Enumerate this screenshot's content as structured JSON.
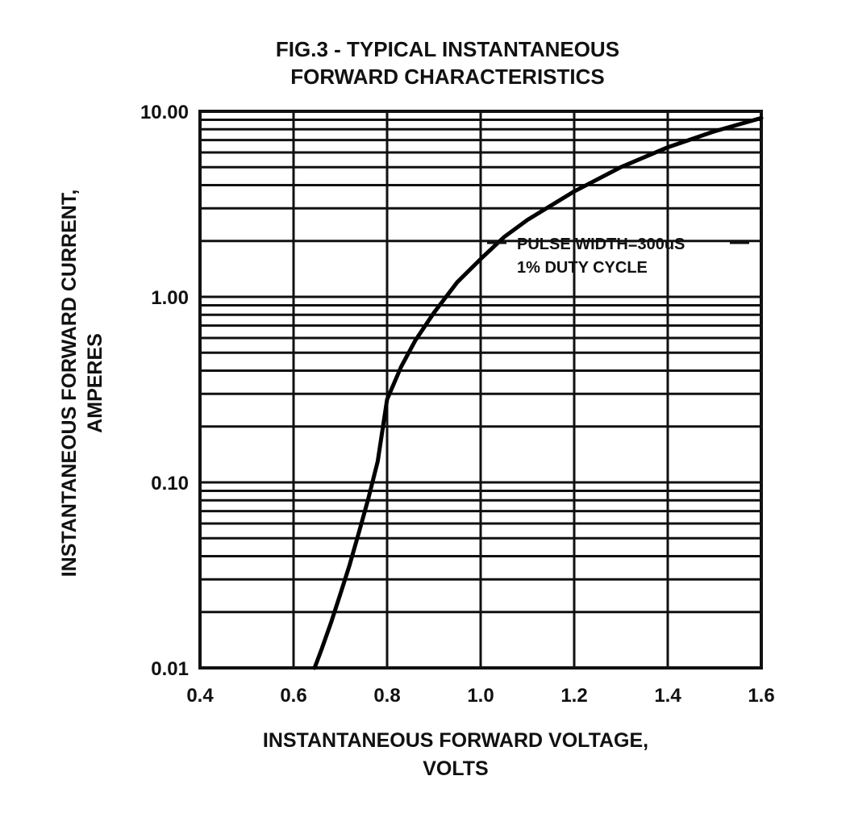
{
  "chart_data": {
    "type": "line",
    "title_lines": [
      "FIG.3 - TYPICAL INSTANTANEOUS",
      "FORWARD CHARACTERISTICS"
    ],
    "xlabel_lines": [
      "INSTANTANEOUS FORWARD VOLTAGE,",
      "VOLTS"
    ],
    "ylabel_lines": [
      "INSTANTANEOUS FORWARD CURRENT,",
      "AMPERES"
    ],
    "xlim": [
      0.4,
      1.6
    ],
    "ylim": [
      0.01,
      10
    ],
    "y_scale": "log",
    "x_ticks": [
      {
        "value": 0.4,
        "label": "0.4"
      },
      {
        "value": 0.6,
        "label": "0.6"
      },
      {
        "value": 0.8,
        "label": "0.8"
      },
      {
        "value": 1.0,
        "label": "1.0"
      },
      {
        "value": 1.2,
        "label": "1.2"
      },
      {
        "value": 1.4,
        "label": "1.4"
      },
      {
        "value": 1.6,
        "label": "1.6"
      }
    ],
    "y_ticks": [
      {
        "value": 0.01,
        "label": "0.01"
      },
      {
        "value": 0.1,
        "label": "0.10"
      },
      {
        "value": 1,
        "label": "1.00"
      },
      {
        "value": 10,
        "label": "10.00"
      }
    ],
    "grid": true,
    "annotation_lines": [
      "PULSE WIDTH=300uS",
      "1% DUTY CYCLE"
    ],
    "series": [
      {
        "x": [
          0.645,
          0.66,
          0.68,
          0.7,
          0.72,
          0.74,
          0.76,
          0.78,
          0.8,
          0.83,
          0.86,
          0.9,
          0.95,
          1.0,
          1.05,
          1.1,
          1.2,
          1.3,
          1.4,
          1.5,
          1.6
        ],
        "y": [
          0.01,
          0.0126,
          0.0175,
          0.025,
          0.036,
          0.054,
          0.082,
          0.13,
          0.28,
          0.42,
          0.58,
          0.82,
          1.2,
          1.6,
          2.1,
          2.6,
          3.7,
          5.0,
          6.4,
          7.8,
          9.2
        ]
      }
    ]
  }
}
